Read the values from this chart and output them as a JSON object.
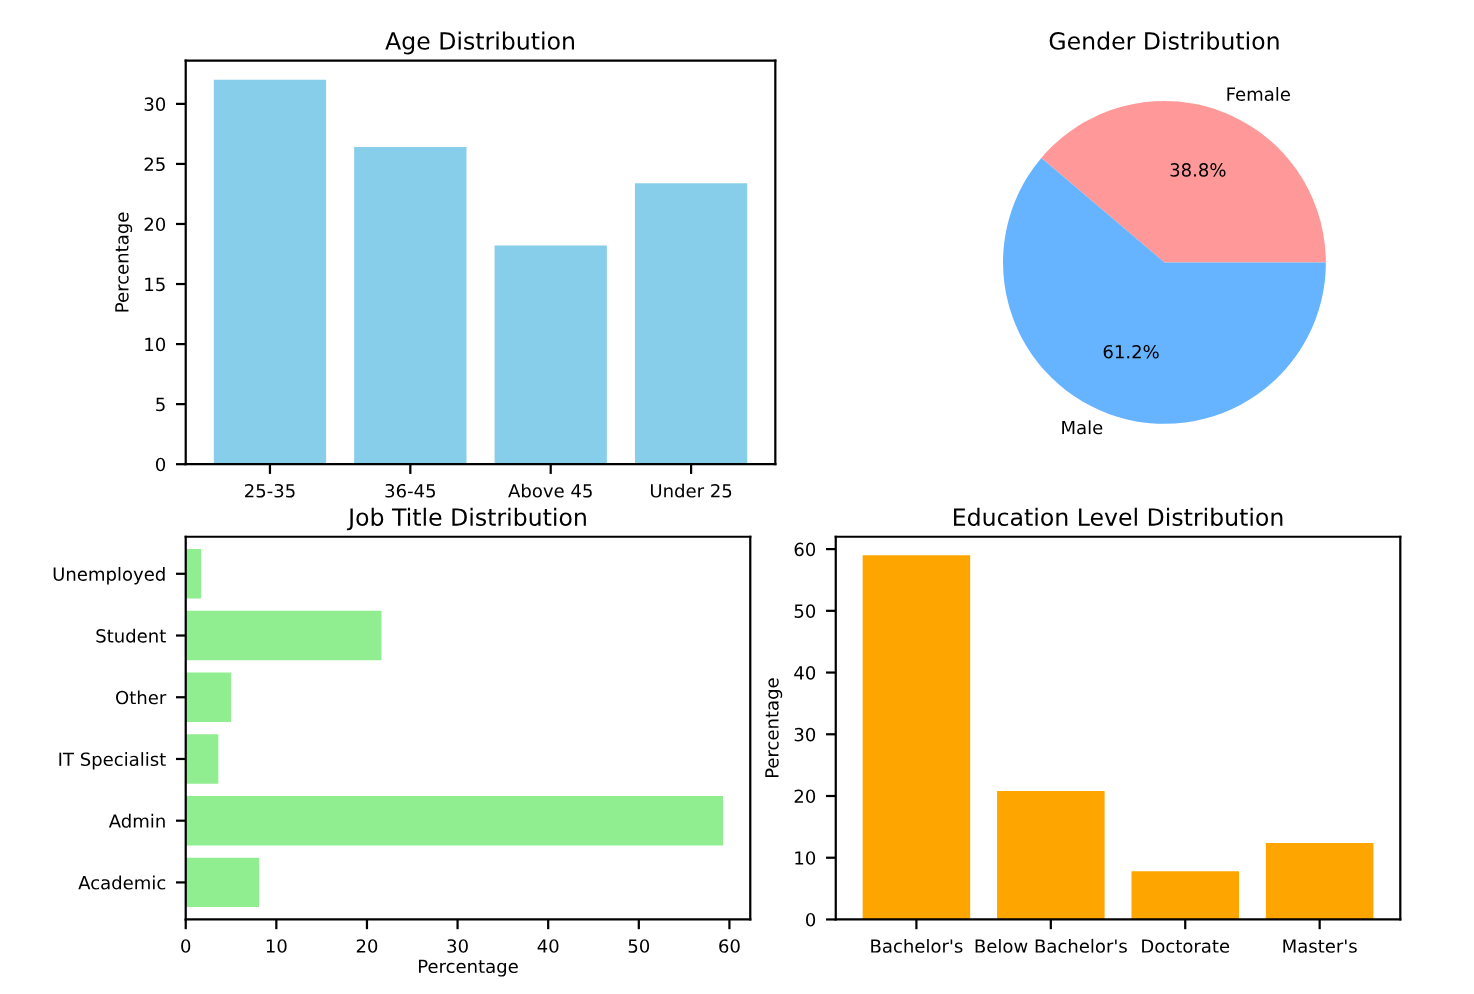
{
  "chart_data": [
    {
      "type": "bar",
      "title": "Age Distribution",
      "ylabel": "Percentage",
      "categories": [
        "25-35",
        "36-45",
        "Above 45",
        "Under 25"
      ],
      "values": [
        32.0,
        26.4,
        18.2,
        23.4
      ],
      "color": "#87ceeb",
      "ylim": [
        0,
        33.6
      ],
      "yticks": [
        0,
        5,
        10,
        15,
        20,
        25,
        30
      ]
    },
    {
      "type": "pie",
      "title": "Gender Distribution",
      "categories": [
        "Female",
        "Male"
      ],
      "values": [
        38.8,
        61.2
      ],
      "colors": [
        "#ff9999",
        "#66b3ff"
      ],
      "value_labels": [
        "38.8%",
        "61.2%"
      ]
    },
    {
      "type": "bar",
      "orientation": "horizontal",
      "title": "Job Title Distribution",
      "xlabel": "Percentage",
      "categories": [
        "Unemployed",
        "Student",
        "Other",
        "IT Specialist",
        "Admin",
        "Academic"
      ],
      "values": [
        1.7,
        21.6,
        5.0,
        3.6,
        59.3,
        8.1
      ],
      "color": "#90ee90",
      "xlim": [
        0,
        62.3
      ],
      "xticks": [
        0,
        10,
        20,
        30,
        40,
        50,
        60
      ]
    },
    {
      "type": "bar",
      "title": "Education Level Distribution",
      "ylabel": "Percentage",
      "categories": [
        "Bachelor's",
        "Below Bachelor's",
        "Doctorate",
        "Master's"
      ],
      "values": [
        59.0,
        20.8,
        7.8,
        12.4
      ],
      "color": "#ffa500",
      "ylim": [
        0,
        62
      ],
      "yticks": [
        0,
        10,
        20,
        30,
        40,
        50,
        60
      ]
    }
  ]
}
